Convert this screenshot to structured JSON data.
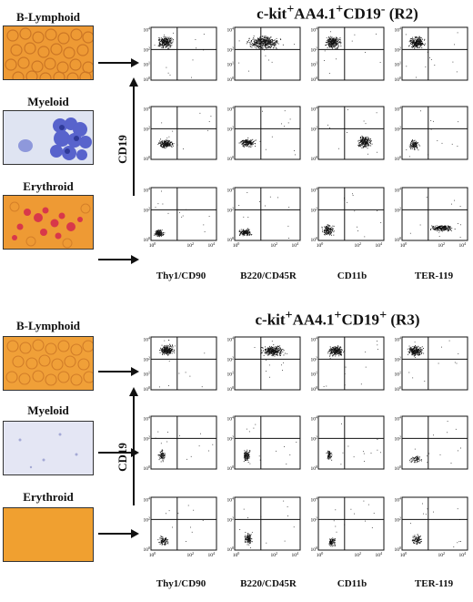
{
  "figure": {
    "panels": [
      {
        "id": "top",
        "title_main": "c-kit",
        "title_sup1": "+",
        "title_mid": "AA4.1",
        "title_sup2": "+",
        "title_tail": "CD19",
        "title_sup3": "-",
        "title_gate": " (R2)",
        "samples": [
          {
            "label": "B-Lymphoid",
            "image": "orange-field-round-cells"
          },
          {
            "label": "Myeloid",
            "image": "blue-stained-colony"
          },
          {
            "label": "Erythroid",
            "image": "orange-field-red-cells"
          }
        ],
        "y_axis_label": "CD19",
        "x_labels": [
          "Thy1/CD90",
          "B220/CD45R",
          "CD11b",
          "TER-119"
        ]
      },
      {
        "id": "bottom",
        "title_main": "c-kit",
        "title_sup1": "+",
        "title_mid": "AA4.1",
        "title_sup2": "+",
        "title_tail": "CD19",
        "title_sup3": "+",
        "title_gate": " (R3)",
        "samples": [
          {
            "label": "B-Lymphoid",
            "image": "orange-field-round-cells"
          },
          {
            "label": "Myeloid",
            "image": "pale-blue-field"
          },
          {
            "label": "Erythroid",
            "image": "orange-field-empty"
          }
        ],
        "y_axis_label": "CD19",
        "x_labels": [
          "Thy1/CD90",
          "B220/CD45R",
          "CD11b",
          "TER-119"
        ]
      }
    ],
    "tick_labels": [
      "10",
      "10",
      "10",
      "10"
    ],
    "tick_exponents": [
      "0",
      "1",
      "2",
      "4"
    ],
    "colors": {
      "orange": "#f0a030",
      "myeloid_blue": "#4a56c8",
      "red_cells": "#d8384a",
      "dots": "#111111"
    }
  }
}
